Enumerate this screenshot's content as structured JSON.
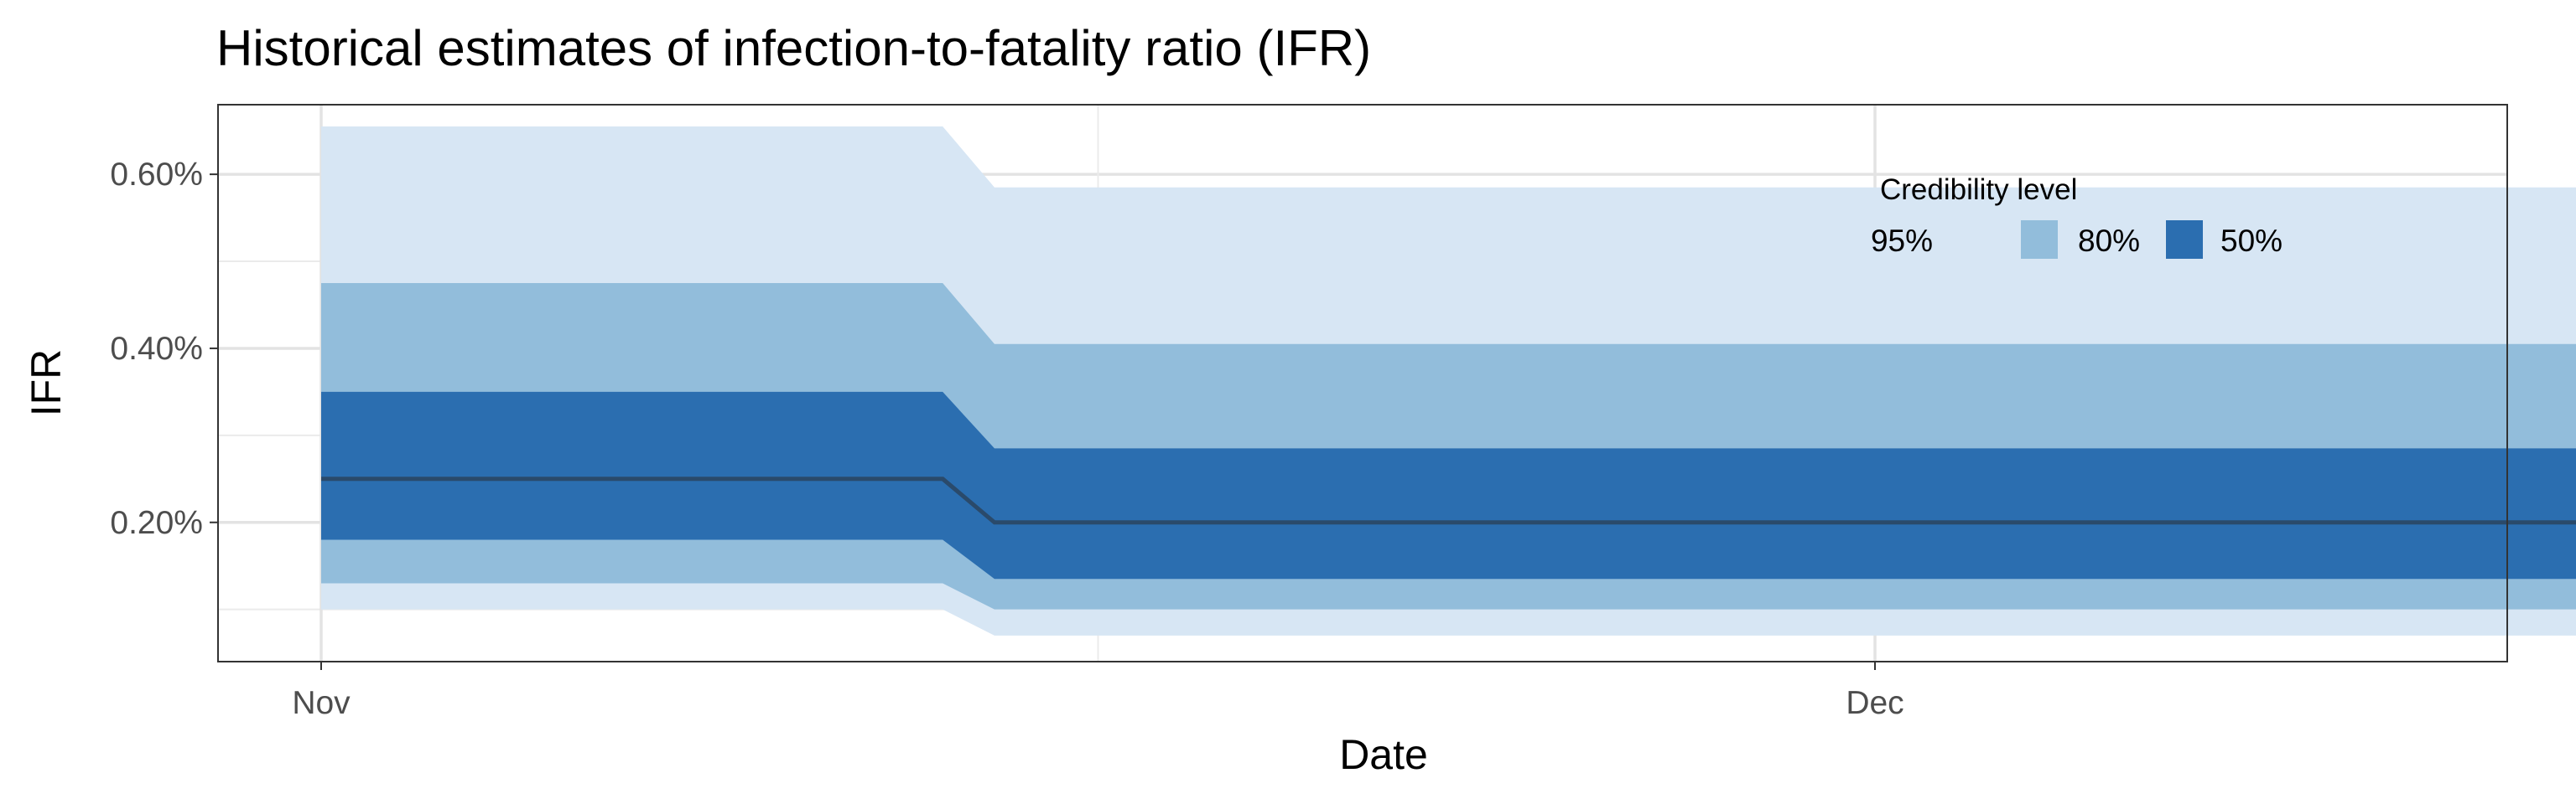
{
  "chart_data": {
    "type": "area",
    "title": "Historical estimates of infection-to-fatality ratio (IFR)",
    "xlabel": "Date",
    "ylabel": "IFR",
    "x": [
      "Nov 1",
      "Nov 13",
      "Nov 14",
      "Dec 22"
    ],
    "x_ticks": [
      {
        "date": "Nov 1",
        "label": "Nov"
      },
      {
        "date": "Dec 1",
        "label": "Dec"
      }
    ],
    "y_ticks": [
      {
        "value": 0.2,
        "label": "0.20%"
      },
      {
        "value": 0.4,
        "label": "0.40%"
      },
      {
        "value": 0.6,
        "label": "0.60%"
      }
    ],
    "ylim": [
      0.04,
      0.68
    ],
    "grid": true,
    "legend_position": "top-right",
    "series": [
      {
        "name": "95%",
        "lower": [
          0.1,
          0.1,
          0.07,
          0.07
        ],
        "upper": [
          0.655,
          0.655,
          0.585,
          0.585
        ],
        "color": "#d7e6f4"
      },
      {
        "name": "80%",
        "lower": [
          0.13,
          0.13,
          0.1,
          0.1
        ],
        "upper": [
          0.475,
          0.475,
          0.405,
          0.405
        ],
        "color": "#92bddb"
      },
      {
        "name": "50%",
        "lower": [
          0.18,
          0.18,
          0.135,
          0.135
        ],
        "upper": [
          0.35,
          0.35,
          0.285,
          0.285
        ],
        "color": "#2b6eb0"
      }
    ],
    "median": [
      0.25,
      0.25,
      0.2,
      0.2
    ],
    "median_color": "#2a4a6b",
    "legend": {
      "title": "Credibility level",
      "items": [
        {
          "label": "95%",
          "color": "#d7e6f4"
        },
        {
          "label": "80%",
          "color": "#92bddb"
        },
        {
          "label": "50%",
          "color": "#2b6eb0"
        }
      ]
    }
  }
}
